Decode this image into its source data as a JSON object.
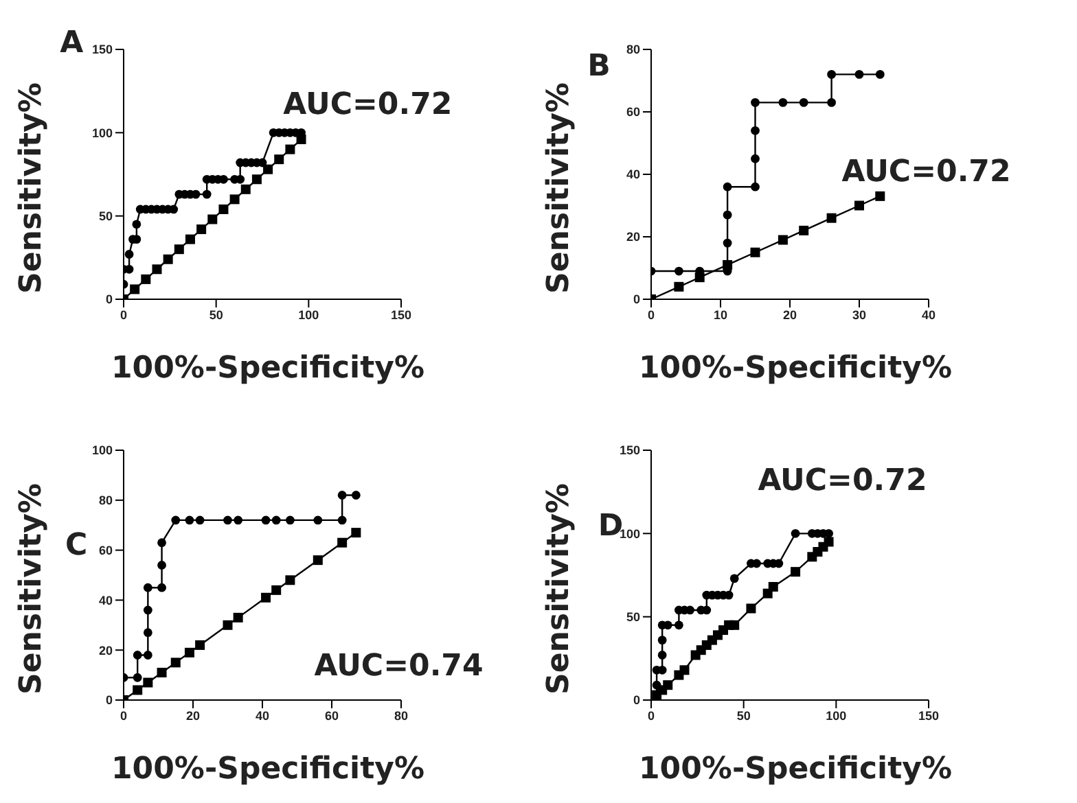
{
  "chart_data": [
    {
      "type": "line",
      "title": "A",
      "xlabel": "100%-Specificity%",
      "ylabel": "Sensitivity%",
      "annotations": [
        "AUC=0.72"
      ],
      "xlim": [
        0,
        150
      ],
      "ylim": [
        0,
        150
      ],
      "xticks": [
        0,
        50,
        100,
        150
      ],
      "yticks": [
        0,
        50,
        100,
        150
      ],
      "grid": false,
      "legend": false,
      "line_style": "solid",
      "series": [
        {
          "color": "#000000",
          "marker": "circle",
          "x": [
            0,
            0,
            3,
            3,
            5,
            7,
            7,
            9,
            12,
            15,
            18,
            21,
            24,
            27,
            30,
            33,
            36,
            39,
            45,
            45,
            48,
            51,
            54,
            60,
            63,
            63,
            66,
            69,
            72,
            75,
            81,
            84,
            87,
            90,
            93,
            96
          ],
          "values": [
            9,
            18,
            18,
            27,
            36,
            36,
            45,
            54,
            54,
            54,
            54,
            54,
            54,
            54,
            63,
            63,
            63,
            63,
            63,
            72,
            72,
            72,
            72,
            72,
            72,
            82,
            82,
            82,
            82,
            82,
            100,
            100,
            100,
            100,
            100,
            100
          ]
        },
        {
          "color": "#000000",
          "marker": "square",
          "x": [
            0,
            6,
            12,
            18,
            24,
            30,
            36,
            42,
            48,
            54,
            60,
            66,
            72,
            78,
            84,
            90,
            96
          ],
          "values": [
            0,
            6,
            12,
            18,
            24,
            30,
            36,
            42,
            48,
            54,
            60,
            66,
            72,
            78,
            84,
            90,
            96
          ]
        }
      ]
    },
    {
      "type": "line",
      "title": "B",
      "xlabel": "100%-Specificity%",
      "ylabel": "Sensitivity%",
      "annotations": [
        "AUC=0.72"
      ],
      "xlim": [
        0,
        40
      ],
      "ylim": [
        0,
        80
      ],
      "xticks": [
        0,
        10,
        20,
        30,
        40
      ],
      "yticks": [
        0,
        20,
        40,
        60,
        80
      ],
      "grid": false,
      "legend": false,
      "line_style": "solid",
      "series": [
        {
          "color": "#000000",
          "marker": "circle",
          "x": [
            0,
            4,
            7,
            11,
            11,
            11,
            11,
            15,
            15,
            15,
            15,
            19,
            22,
            26,
            26,
            30,
            33
          ],
          "values": [
            9,
            9,
            9,
            9,
            18,
            27,
            36,
            36,
            45,
            54,
            63,
            63,
            63,
            63,
            72,
            72,
            72
          ]
        },
        {
          "color": "#000000",
          "marker": "square",
          "x": [
            0,
            4,
            7,
            11,
            15,
            19,
            22,
            26,
            30,
            33
          ],
          "values": [
            0,
            4,
            7,
            11,
            15,
            19,
            22,
            26,
            30,
            33
          ]
        }
      ]
    },
    {
      "type": "line",
      "title": "C",
      "xlabel": "100%-Specificity%",
      "ylabel": "Sensitivity%",
      "annotations": [
        "AUC=0.74"
      ],
      "xlim": [
        0,
        80
      ],
      "ylim": [
        0,
        100
      ],
      "xticks": [
        0,
        20,
        40,
        60,
        80
      ],
      "yticks": [
        0,
        20,
        40,
        60,
        80,
        100
      ],
      "grid": false,
      "legend": false,
      "line_style": "solid",
      "series": [
        {
          "color": "#000000",
          "marker": "circle",
          "x": [
            0,
            4,
            4,
            7,
            7,
            7,
            7,
            11,
            11,
            11,
            15,
            19,
            22,
            30,
            33,
            41,
            44,
            48,
            56,
            63,
            63,
            67
          ],
          "values": [
            9,
            9,
            18,
            18,
            27,
            36,
            45,
            45,
            54,
            63,
            72,
            72,
            72,
            72,
            72,
            72,
            72,
            72,
            72,
            72,
            82,
            82
          ]
        },
        {
          "color": "#000000",
          "marker": "square",
          "x": [
            0,
            4,
            7,
            11,
            15,
            19,
            22,
            30,
            33,
            41,
            44,
            48,
            56,
            63,
            67
          ],
          "values": [
            0,
            4,
            7,
            11,
            15,
            19,
            22,
            30,
            33,
            41,
            44,
            48,
            56,
            63,
            67
          ]
        }
      ]
    },
    {
      "type": "line",
      "title": "D",
      "xlabel": "100%-Specificity%",
      "ylabel": "Sensitivity%",
      "annotations": [
        "AUC=0.72"
      ],
      "xlim": [
        0,
        150
      ],
      "ylim": [
        0,
        150
      ],
      "xticks": [
        0,
        50,
        100,
        150
      ],
      "yticks": [
        0,
        50,
        100,
        150
      ],
      "grid": false,
      "legend": false,
      "line_style": "solid",
      "series": [
        {
          "color": "#000000",
          "marker": "circle",
          "x": [
            3,
            3,
            3,
            6,
            6,
            6,
            6,
            9,
            15,
            15,
            18,
            21,
            27,
            30,
            30,
            33,
            36,
            39,
            42,
            45,
            54,
            57,
            63,
            66,
            69,
            78,
            87,
            90,
            93,
            96
          ],
          "values": [
            0,
            9,
            18,
            18,
            27,
            36,
            45,
            45,
            45,
            54,
            54,
            54,
            54,
            54,
            63,
            63,
            63,
            63,
            63,
            73,
            82,
            82,
            82,
            82,
            82,
            100,
            100,
            100,
            100,
            100
          ]
        },
        {
          "color": "#000000",
          "marker": "square",
          "x": [
            3,
            6,
            9,
            15,
            18,
            24,
            27,
            30,
            33,
            36,
            39,
            42,
            45,
            54,
            63,
            66,
            78,
            87,
            90,
            93,
            96
          ],
          "values": [
            3,
            6,
            9,
            15,
            18,
            27,
            30,
            33,
            36,
            39,
            42,
            45,
            45,
            55,
            64,
            68,
            77,
            86,
            89,
            92,
            95
          ]
        }
      ]
    }
  ]
}
